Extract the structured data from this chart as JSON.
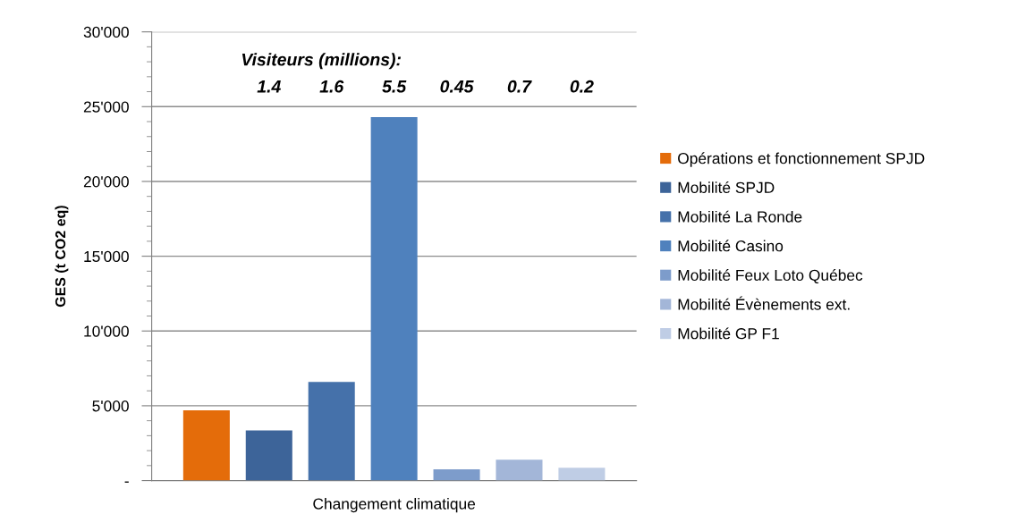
{
  "chart_data": {
    "type": "bar",
    "ylabel": "GES (t CO2 eq)",
    "categories": [
      "Changement climatique"
    ],
    "series": [
      {
        "name": "Opérations et fonctionnement SPJD",
        "color": "#e46c0a",
        "values": [
          4700
        ]
      },
      {
        "name": "Mobilité SPJD",
        "color": "#3d6499",
        "values": [
          3350
        ]
      },
      {
        "name": "Mobilité La Ronde",
        "color": "#4571aa",
        "values": [
          6600
        ]
      },
      {
        "name": "Mobilité Casino",
        "color": "#4f81bd",
        "values": [
          24300
        ]
      },
      {
        "name": "Mobilité Feux Loto Québec",
        "color": "#7d9ccb",
        "values": [
          750
        ]
      },
      {
        "name": "Mobilité Évènements ext.",
        "color": "#a3b6d8",
        "values": [
          1400
        ]
      },
      {
        "name": "Mobilité GP F1",
        "color": "#bfcde5",
        "values": [
          850
        ]
      }
    ],
    "ylim": [
      0,
      30000
    ],
    "yticks": [
      {
        "value": 0,
        "label": "-"
      },
      {
        "value": 1000,
        "label": null
      },
      {
        "value": 2000,
        "label": null
      },
      {
        "value": 3000,
        "label": null
      },
      {
        "value": 4000,
        "label": null
      },
      {
        "value": 5000,
        "label": "5'000"
      },
      {
        "value": 6000,
        "label": null
      },
      {
        "value": 7000,
        "label": null
      },
      {
        "value": 8000,
        "label": null
      },
      {
        "value": 9000,
        "label": null
      },
      {
        "value": 10000,
        "label": "10'000"
      },
      {
        "value": 11000,
        "label": null
      },
      {
        "value": 12000,
        "label": null
      },
      {
        "value": 13000,
        "label": null
      },
      {
        "value": 14000,
        "label": null
      },
      {
        "value": 15000,
        "label": "15'000"
      },
      {
        "value": 16000,
        "label": null
      },
      {
        "value": 17000,
        "label": null
      },
      {
        "value": 18000,
        "label": null
      },
      {
        "value": 19000,
        "label": null
      },
      {
        "value": 20000,
        "label": "20'000"
      },
      {
        "value": 21000,
        "label": null
      },
      {
        "value": 22000,
        "label": null
      },
      {
        "value": 23000,
        "label": null
      },
      {
        "value": 24000,
        "label": null
      },
      {
        "value": 25000,
        "label": "25'000"
      },
      {
        "value": 26000,
        "label": null
      },
      {
        "value": 27000,
        "label": null
      },
      {
        "value": 28000,
        "label": null
      },
      {
        "value": 29000,
        "label": null
      },
      {
        "value": 30000,
        "label": "30'000"
      }
    ],
    "annotations": [
      "Visiteurs (millions):",
      "1.4",
      "1.6",
      "5.5",
      "0.45",
      "0.7",
      "0.2"
    ],
    "grid": "y",
    "legend": "right"
  }
}
